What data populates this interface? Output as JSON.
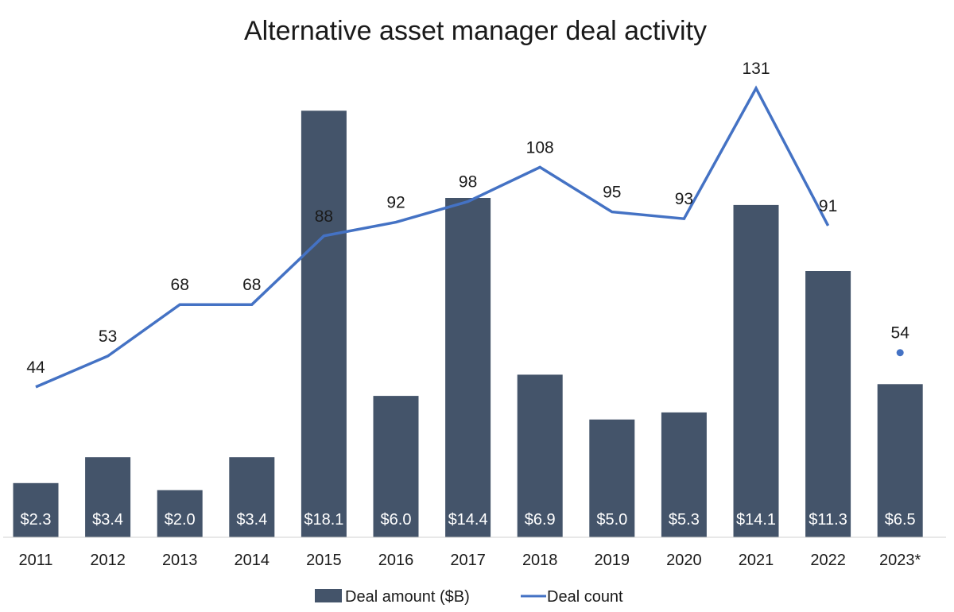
{
  "chart_data": {
    "type": "bar",
    "title": "Alternative asset manager deal activity",
    "categories": [
      "2011",
      "2012",
      "2013",
      "2014",
      "2015",
      "2016",
      "2017",
      "2018",
      "2019",
      "2020",
      "2021",
      "2022",
      "2023*"
    ],
    "series": [
      {
        "name": "Deal amount ($B)",
        "kind": "bar",
        "color": "#44546a",
        "values": [
          2.3,
          3.4,
          2.0,
          3.4,
          18.1,
          6.0,
          14.4,
          6.9,
          5.0,
          5.3,
          14.1,
          11.3,
          6.5
        ],
        "labels": [
          "$2.3",
          "$3.4",
          "$2.0",
          "$3.4",
          "$18.1",
          "$6.0",
          "$14.4",
          "$6.9",
          "$5.0",
          "$5.3",
          "$14.1",
          "$11.3",
          "$6.5"
        ]
      },
      {
        "name": "Deal count",
        "kind": "line",
        "color": "#4472c4",
        "values": [
          44,
          53,
          68,
          68,
          88,
          92,
          98,
          108,
          95,
          93,
          131,
          91,
          54
        ],
        "labels": [
          "44",
          "53",
          "68",
          "68",
          "88",
          "92",
          "98",
          "108",
          "95",
          "93",
          "131",
          "91",
          "54"
        ],
        "separate_last_point": true
      }
    ],
    "xlabel": "",
    "ylabel": "",
    "ylim_amount": [
      0,
      20
    ],
    "ylim_count": [
      0,
      150
    ],
    "grid": false,
    "legend": [
      "Deal amount ($B)",
      "Deal count"
    ],
    "legend_position": "bottom-center"
  }
}
